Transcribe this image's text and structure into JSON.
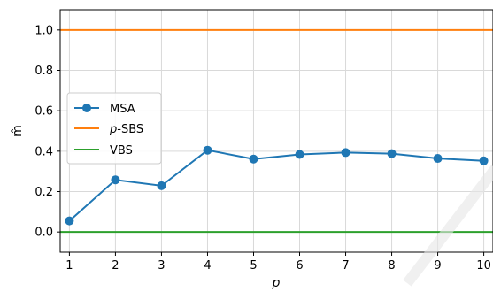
{
  "chart_data": {
    "type": "line",
    "xlabel": "p",
    "ylabel": "m̂",
    "xlim": [
      0.8,
      10.2
    ],
    "ylim": [
      -0.1,
      1.1
    ],
    "xticks": [
      1,
      2,
      3,
      4,
      5,
      6,
      7,
      8,
      9,
      10
    ],
    "yticks": [
      0.0,
      0.2,
      0.4,
      0.6,
      0.8,
      1.0
    ],
    "ytick_labels": [
      "0.0",
      "0.2",
      "0.4",
      "0.6",
      "0.8",
      "1.0"
    ],
    "grid": true,
    "legend_position": "center-left",
    "series": [
      {
        "name": "MSA",
        "color": "#1f77b4",
        "marker": "circle",
        "x": [
          1,
          2,
          3,
          4,
          5,
          6,
          7,
          8,
          9,
          10
        ],
        "y": [
          0.055,
          0.258,
          0.229,
          0.405,
          0.361,
          0.384,
          0.393,
          0.388,
          0.364,
          0.352
        ]
      },
      {
        "name_prefix": "p",
        "name_suffix": "-SBS",
        "color": "#ff7f0e",
        "marker": "none",
        "x": [
          1,
          10
        ],
        "y": [
          1.0,
          1.0
        ]
      },
      {
        "name": "VBS",
        "color": "#2ca02c",
        "marker": "none",
        "x": [
          1,
          10
        ],
        "y": [
          0.0,
          0.0
        ]
      }
    ]
  }
}
